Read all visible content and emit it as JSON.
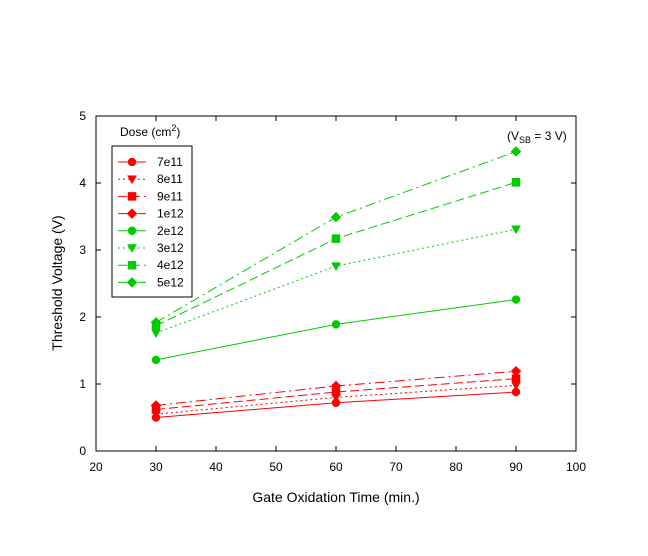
{
  "chart_data": {
    "type": "line",
    "xlabel": "Gate Oxidation Time (min.)",
    "ylabel": "Threshold Voltage (V)",
    "xlim": [
      20,
      100
    ],
    "ylim": [
      0,
      5
    ],
    "xticks": [
      20,
      30,
      40,
      50,
      60,
      70,
      80,
      90,
      100
    ],
    "yticks": [
      0,
      1,
      2,
      3,
      4,
      5
    ],
    "grid": false,
    "legend_title": "Dose (cm",
    "legend_title_sup": "2",
    "legend_title_end": ")",
    "legend_position": "top-left",
    "annotation": {
      "prefix": "(V",
      "sub": "SB",
      "suffix": " = 3 V)"
    },
    "x": [
      30,
      60,
      90
    ],
    "series": [
      {
        "name": "7e11",
        "color": "#ff0000",
        "marker": "circle",
        "dash": "solid",
        "values": [
          0.5,
          0.72,
          0.88
        ]
      },
      {
        "name": "8e11",
        "color": "#ff0000",
        "marker": "triangle",
        "dash": "dotted",
        "values": [
          0.55,
          0.8,
          0.98
        ]
      },
      {
        "name": "9e11",
        "color": "#ff0000",
        "marker": "square",
        "dash": "dashed",
        "values": [
          0.62,
          0.88,
          1.08
        ]
      },
      {
        "name": "1e12",
        "color": "#ff0000",
        "marker": "diamond",
        "dash": "dashdot",
        "values": [
          0.68,
          0.97,
          1.19
        ]
      },
      {
        "name": "2e12",
        "color": "#00cc00",
        "marker": "circle",
        "dash": "solid",
        "values": [
          1.36,
          1.89,
          2.26
        ]
      },
      {
        "name": "3e12",
        "color": "#00cc00",
        "marker": "triangle",
        "dash": "dotted",
        "values": [
          1.76,
          2.76,
          3.31
        ]
      },
      {
        "name": "4e12",
        "color": "#00cc00",
        "marker": "square",
        "dash": "dashed",
        "values": [
          1.87,
          3.17,
          4.01
        ]
      },
      {
        "name": "5e12",
        "color": "#00cc00",
        "marker": "diamond",
        "dash": "dashdot",
        "values": [
          1.92,
          3.49,
          4.47
        ]
      }
    ]
  }
}
